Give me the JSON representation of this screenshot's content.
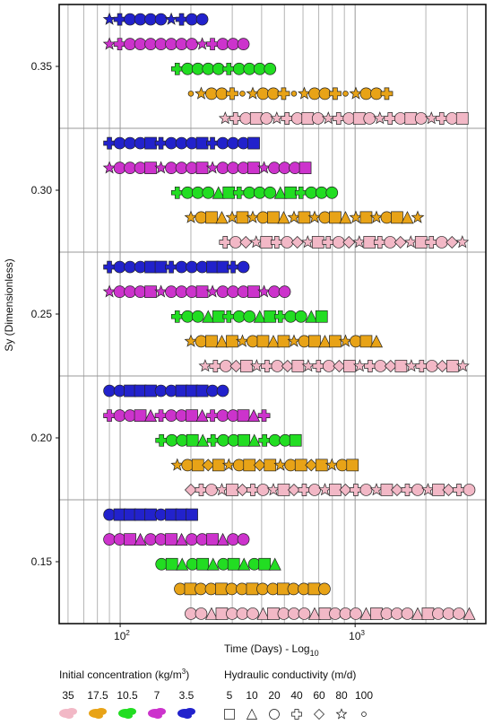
{
  "chart_data": {
    "type": "scatter",
    "xlabel": "Time (Days) - Log",
    "xlabel_sub": "10",
    "ylabel": "Sy (Dimensionless)",
    "x_scale": "log",
    "xlim": [
      55,
      3600
    ],
    "ylim": [
      0.125,
      0.375
    ],
    "x_ticks": [
      {
        "value": 100,
        "base": "10",
        "exp": "2"
      },
      {
        "value": 1000,
        "base": "10",
        "exp": "3"
      }
    ],
    "y_ticks": [
      {
        "value": 0.35,
        "label": "0.35"
      },
      {
        "value": 0.3,
        "label": "0.30"
      },
      {
        "value": 0.25,
        "label": "0.25"
      },
      {
        "value": 0.2,
        "label": "0.20"
      },
      {
        "value": 0.15,
        "label": "0.15"
      }
    ],
    "grid": true,
    "sy_levels": [
      0.15,
      0.2,
      0.25,
      0.3,
      0.35
    ],
    "legend_concentration": {
      "title": "Initial concentration (kg/m",
      "title_sup": "3",
      "title_end": ")",
      "items": [
        {
          "label": "35",
          "color": "#f2b8c6"
        },
        {
          "label": "17.5",
          "color": "#e8a317"
        },
        {
          "label": "10.5",
          "color": "#22dd22"
        },
        {
          "label": "7",
          "color": "#cc33cc"
        },
        {
          "label": "3.5",
          "color": "#2222cc"
        }
      ]
    },
    "legend_conductivity": {
      "title": "Hydraulic conductivity (m/d)",
      "items": [
        {
          "label": "5",
          "shape": "square"
        },
        {
          "label": "10",
          "shape": "triangle"
        },
        {
          "label": "20",
          "shape": "circle"
        },
        {
          "label": "40",
          "shape": "cross"
        },
        {
          "label": "60",
          "shape": "diamond"
        },
        {
          "label": "80",
          "shape": "star"
        },
        {
          "label": "100",
          "shape": "small-circle"
        }
      ]
    },
    "series": [
      {
        "sy": 0.35,
        "concentration": "3.5",
        "shapes": [
          "star",
          "cross",
          "circle",
          "circle",
          "circle",
          "circle"
        ],
        "x_start": 90,
        "x_end": 225
      },
      {
        "sy": 0.35,
        "concentration": "7",
        "shapes": [
          "star",
          "cross",
          "circle",
          "circle",
          "circle",
          "circle",
          "circle",
          "circle",
          "circle"
        ],
        "x_start": 90,
        "x_end": 370
      },
      {
        "sy": 0.35,
        "concentration": "10.5",
        "shapes": [
          "cross",
          "circle",
          "circle",
          "circle",
          "circle"
        ],
        "x_start": 175,
        "x_end": 450
      },
      {
        "sy": 0.35,
        "concentration": "17.5",
        "shapes": [
          "small-circle",
          "star",
          "circle",
          "circle",
          "cross"
        ],
        "x_start": 200,
        "x_end": 1450
      },
      {
        "sy": 0.35,
        "concentration": "35",
        "shapes": [
          "star",
          "cross",
          "circle",
          "square",
          "circle"
        ],
        "x_start": 280,
        "x_end": 3100
      },
      {
        "sy": 0.3,
        "concentration": "3.5",
        "shapes": [
          "cross",
          "circle",
          "circle",
          "circle",
          "square"
        ],
        "x_start": 90,
        "x_end": 400
      },
      {
        "sy": 0.3,
        "concentration": "7",
        "shapes": [
          "star",
          "circle",
          "circle",
          "circle",
          "square"
        ],
        "x_start": 90,
        "x_end": 630
      },
      {
        "sy": 0.3,
        "concentration": "10.5",
        "shapes": [
          "cross",
          "circle",
          "circle",
          "circle",
          "triangle",
          "square"
        ],
        "x_start": 175,
        "x_end": 880
      },
      {
        "sy": 0.3,
        "concentration": "17.5",
        "shapes": [
          "star",
          "circle",
          "square",
          "triangle",
          "star",
          "square"
        ],
        "x_start": 200,
        "x_end": 1880
      },
      {
        "sy": 0.3,
        "concentration": "35",
        "shapes": [
          "cross",
          "circle",
          "diamond",
          "star",
          "square"
        ],
        "x_start": 280,
        "x_end": 3150
      },
      {
        "sy": 0.25,
        "concentration": "3.5",
        "shapes": [
          "cross",
          "circle",
          "circle",
          "circle",
          "square",
          "square"
        ],
        "x_start": 90,
        "x_end": 340
      },
      {
        "sy": 0.25,
        "concentration": "7",
        "shapes": [
          "star",
          "circle",
          "circle",
          "circle",
          "square"
        ],
        "x_start": 90,
        "x_end": 530
      },
      {
        "sy": 0.25,
        "concentration": "10.5",
        "shapes": [
          "cross",
          "circle",
          "circle",
          "triangle",
          "square"
        ],
        "x_start": 175,
        "x_end": 730
      },
      {
        "sy": 0.25,
        "concentration": "17.5",
        "shapes": [
          "star",
          "circle",
          "square",
          "triangle",
          "square"
        ],
        "x_start": 200,
        "x_end": 1340
      },
      {
        "sy": 0.25,
        "concentration": "35",
        "shapes": [
          "star",
          "cross",
          "circle",
          "diamond",
          "square"
        ],
        "x_start": 230,
        "x_end": 3150
      },
      {
        "sy": 0.2,
        "concentration": "3.5",
        "shapes": [
          "circle",
          "circle",
          "square",
          "square",
          "square"
        ],
        "x_start": 90,
        "x_end": 280
      },
      {
        "sy": 0.2,
        "concentration": "7",
        "shapes": [
          "cross",
          "circle",
          "circle",
          "square",
          "triangle"
        ],
        "x_start": 90,
        "x_end": 430
      },
      {
        "sy": 0.2,
        "concentration": "10.5",
        "shapes": [
          "cross",
          "circle",
          "circle",
          "square",
          "triangle"
        ],
        "x_start": 150,
        "x_end": 570
      },
      {
        "sy": 0.2,
        "concentration": "17.5",
        "shapes": [
          "star",
          "circle",
          "square",
          "diamond",
          "square"
        ],
        "x_start": 175,
        "x_end": 980
      },
      {
        "sy": 0.2,
        "concentration": "35",
        "shapes": [
          "diamond",
          "cross",
          "circle",
          "star",
          "square"
        ],
        "x_start": 200,
        "x_end": 3150
      },
      {
        "sy": 0.15,
        "concentration": "3.5",
        "shapes": [
          "circle",
          "square",
          "square",
          "square",
          "square"
        ],
        "x_start": 90,
        "x_end": 220
      },
      {
        "sy": 0.15,
        "concentration": "7",
        "shapes": [
          "circle",
          "circle",
          "square",
          "triangle"
        ],
        "x_start": 90,
        "x_end": 340
      },
      {
        "sy": 0.15,
        "concentration": "10.5",
        "shapes": [
          "circle",
          "square",
          "triangle"
        ],
        "x_start": 150,
        "x_end": 470
      },
      {
        "sy": 0.15,
        "concentration": "17.5",
        "shapes": [
          "circle",
          "square",
          "circle"
        ],
        "x_start": 180,
        "x_end": 780
      },
      {
        "sy": 0.15,
        "concentration": "35",
        "shapes": [
          "circle",
          "circle",
          "triangle",
          "square",
          "circle"
        ],
        "x_start": 200,
        "x_end": 3150
      }
    ]
  }
}
